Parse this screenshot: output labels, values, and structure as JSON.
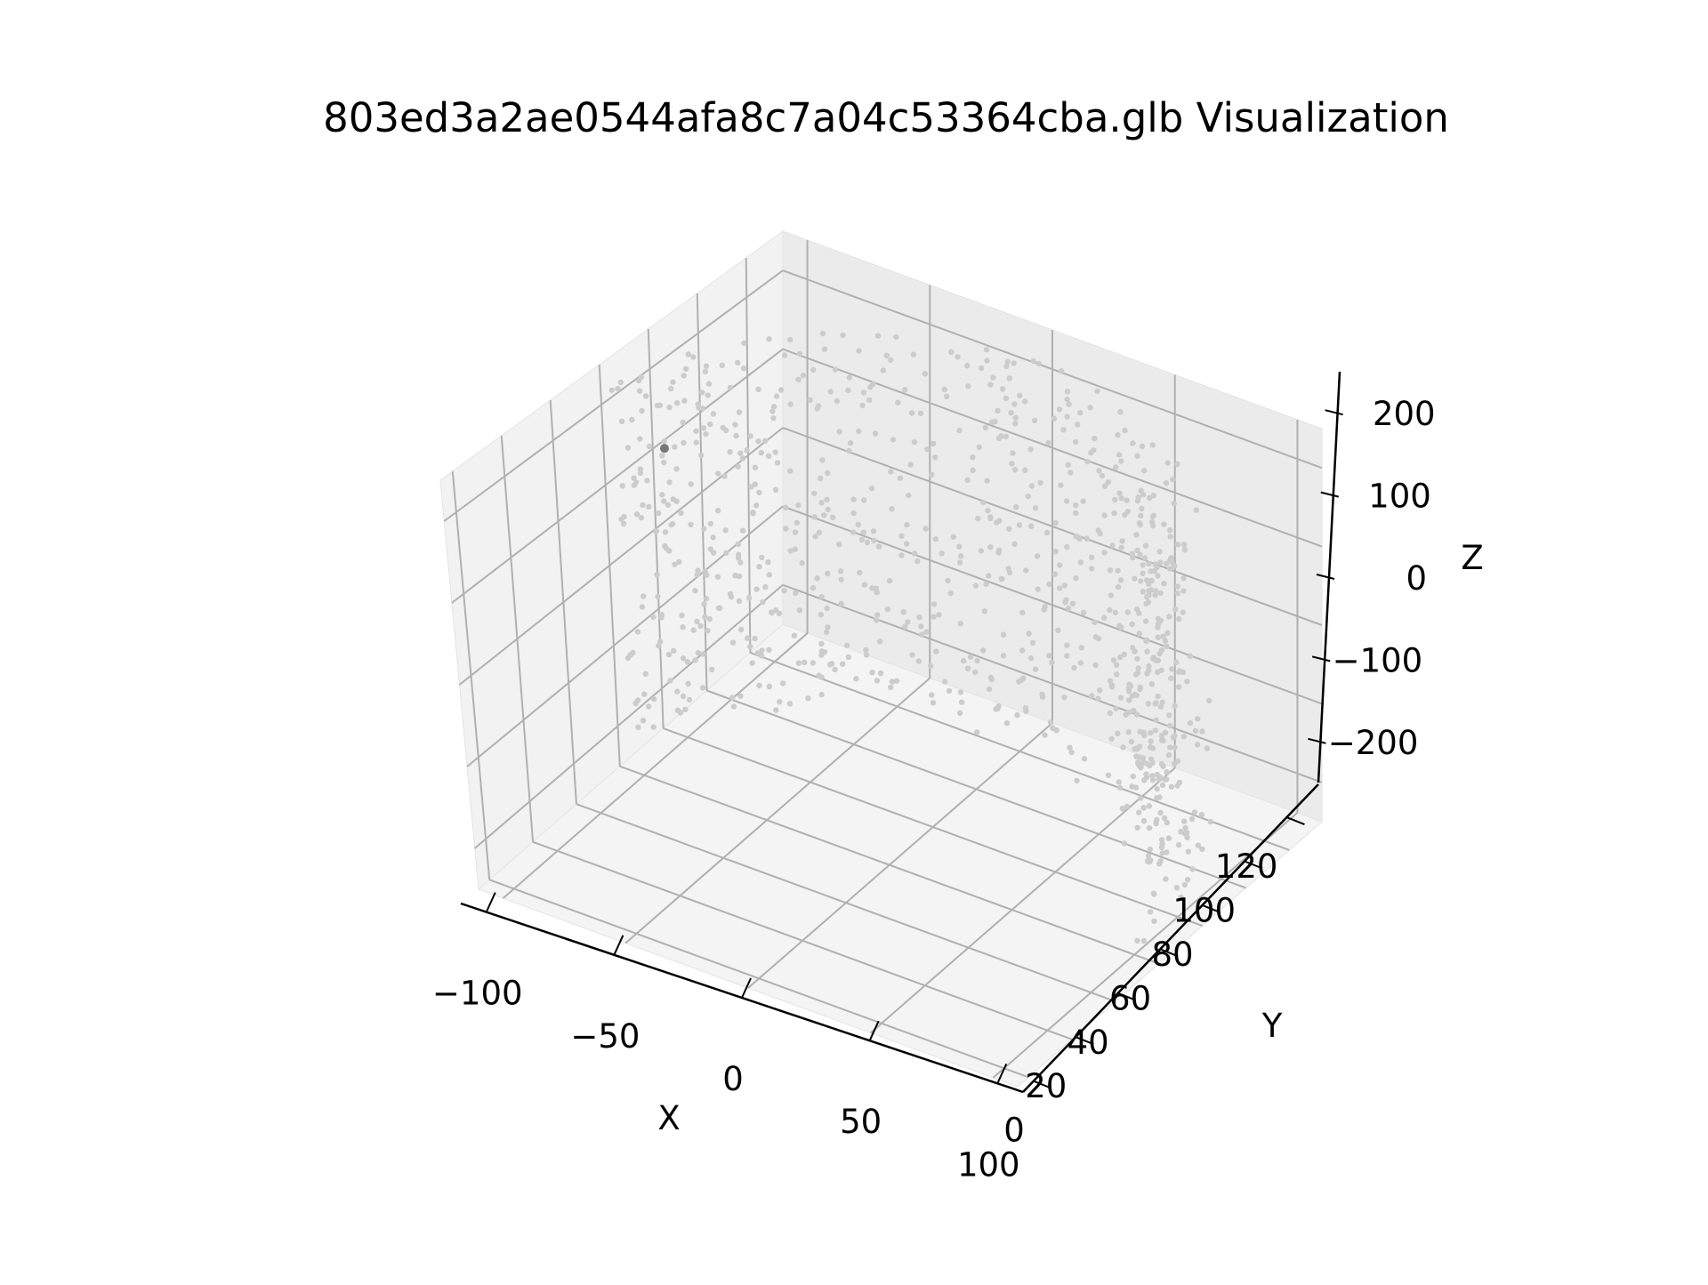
{
  "chart_data": {
    "type": "scatter3d",
    "title": "803ed3a2ae0544afa8c7a04c53364cba.glb Visualization",
    "xlabel": "X",
    "ylabel": "Y",
    "zlabel": "Z",
    "x_ticks": [
      "−100",
      "−50",
      "0",
      "50",
      "100"
    ],
    "y_ticks": [
      "0",
      "20",
      "40",
      "60",
      "80",
      "100",
      "120"
    ],
    "z_ticks": [
      "−200",
      "−100",
      "0",
      "100",
      "200"
    ],
    "xlim": [
      -110,
      110
    ],
    "ylim": [
      -5,
      135
    ],
    "zlim": [
      -250,
      250
    ],
    "grid": true,
    "point_color": "#cccccc",
    "accent_point_color": "#777777",
    "pane_colors": {
      "left": "#f2f2f2",
      "back": "#ebebeb",
      "floor": "#f4f4f4"
    },
    "grid_color": "#b0b0b0",
    "n_points": 900,
    "distribution": "points scattered on a partial hollow cylindrical shell, opening facing the viewer",
    "shape": {
      "center_x": 0,
      "center_y": 70,
      "radius_x": 105,
      "radius_y": 65,
      "z_range": [
        -230,
        230
      ]
    }
  }
}
